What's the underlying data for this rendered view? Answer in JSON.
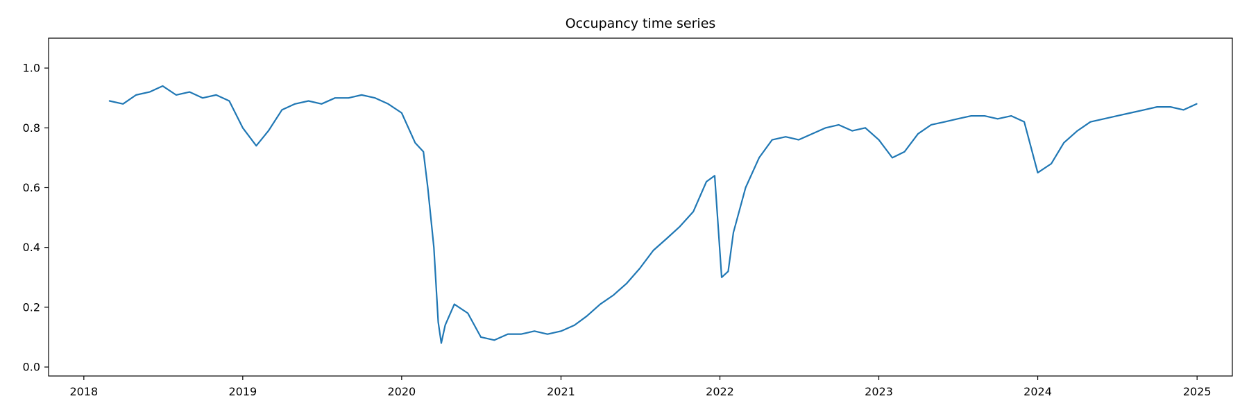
{
  "chart_data": {
    "type": "line",
    "title": "Occupancy time series",
    "xlabel": "",
    "ylabel": "",
    "x_axis_type": "date",
    "xlim": [
      "2017-10-12",
      "2025-03-23"
    ],
    "ylim": [
      -0.03,
      1.1
    ],
    "xticks": [
      "2018",
      "2019",
      "2020",
      "2021",
      "2022",
      "2023",
      "2024",
      "2025"
    ],
    "yticks": [
      "0.0",
      "0.2",
      "0.4",
      "0.6",
      "0.8",
      "1.0"
    ],
    "grid": false,
    "legend": "none",
    "series": [
      {
        "color": "#1f77b4",
        "x": [
          "2018-03-01",
          "2018-04-01",
          "2018-05-01",
          "2018-06-01",
          "2018-07-01",
          "2018-08-01",
          "2018-09-01",
          "2018-10-01",
          "2018-11-01",
          "2018-12-01",
          "2019-01-01",
          "2019-02-01",
          "2019-03-01",
          "2019-04-01",
          "2019-05-01",
          "2019-06-01",
          "2019-07-01",
          "2019-08-01",
          "2019-09-01",
          "2019-10-01",
          "2019-11-01",
          "2019-12-01",
          "2020-01-01",
          "2020-02-01",
          "2020-02-20",
          "2020-03-01",
          "2020-03-15",
          "2020-03-25",
          "2020-04-01",
          "2020-04-10",
          "2020-05-01",
          "2020-06-01",
          "2020-07-01",
          "2020-08-01",
          "2020-09-01",
          "2020-10-01",
          "2020-11-01",
          "2020-12-01",
          "2021-01-01",
          "2021-02-01",
          "2021-03-01",
          "2021-04-01",
          "2021-05-01",
          "2021-06-01",
          "2021-07-01",
          "2021-08-01",
          "2021-09-01",
          "2021-10-01",
          "2021-11-01",
          "2021-12-01",
          "2021-12-20",
          "2022-01-05",
          "2022-01-20",
          "2022-02-01",
          "2022-03-01",
          "2022-04-01",
          "2022-05-01",
          "2022-06-01",
          "2022-07-01",
          "2022-08-01",
          "2022-09-01",
          "2022-10-01",
          "2022-11-01",
          "2022-12-01",
          "2023-01-01",
          "2023-02-01",
          "2023-03-01",
          "2023-04-01",
          "2023-05-01",
          "2023-06-01",
          "2023-07-01",
          "2023-08-01",
          "2023-09-01",
          "2023-10-01",
          "2023-11-01",
          "2023-12-01",
          "2024-01-01",
          "2024-02-01",
          "2024-03-01",
          "2024-04-01",
          "2024-05-01",
          "2024-06-01",
          "2024-07-01",
          "2024-08-01",
          "2024-09-01",
          "2024-10-01",
          "2024-11-01",
          "2024-12-01",
          "2024-12-31"
        ],
        "y": [
          0.89,
          0.88,
          0.91,
          0.92,
          0.94,
          0.91,
          0.92,
          0.9,
          0.91,
          0.89,
          0.8,
          0.74,
          0.79,
          0.86,
          0.88,
          0.89,
          0.88,
          0.9,
          0.9,
          0.91,
          0.9,
          0.88,
          0.85,
          0.75,
          0.72,
          0.6,
          0.4,
          0.15,
          0.08,
          0.14,
          0.21,
          0.18,
          0.1,
          0.09,
          0.11,
          0.11,
          0.12,
          0.11,
          0.12,
          0.14,
          0.17,
          0.21,
          0.24,
          0.28,
          0.33,
          0.39,
          0.43,
          0.47,
          0.52,
          0.62,
          0.64,
          0.3,
          0.32,
          0.45,
          0.6,
          0.7,
          0.76,
          0.77,
          0.76,
          0.78,
          0.8,
          0.81,
          0.79,
          0.8,
          0.76,
          0.7,
          0.72,
          0.78,
          0.81,
          0.82,
          0.83,
          0.84,
          0.84,
          0.83,
          0.84,
          0.82,
          0.65,
          0.68,
          0.75,
          0.79,
          0.82,
          0.83,
          0.84,
          0.85,
          0.86,
          0.87,
          0.87,
          0.86,
          0.88
        ]
      }
    ]
  }
}
